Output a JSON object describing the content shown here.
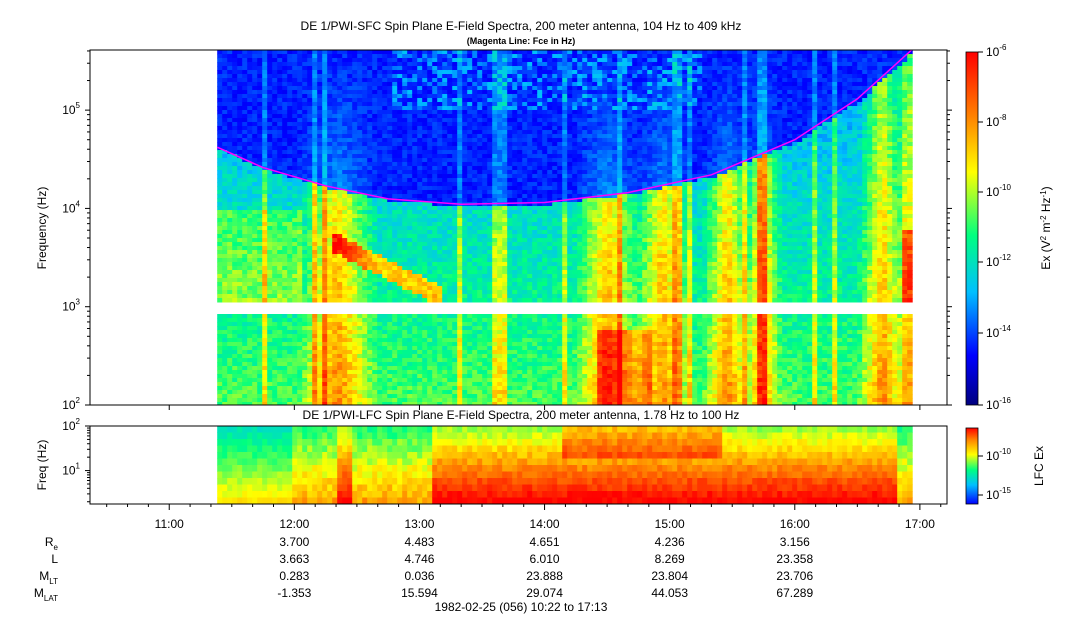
{
  "titles": {
    "main": "DE 1/PWI-SFC  Spin Plane E-Field Spectra, 200 meter antenna, 104 Hz to 409 kHz",
    "sub": "(Magenta Line: Fce in Hz)",
    "lower": "DE 1/PWI-LFC  Spin Plane E-Field Spectra, 200 meter antenna, 1.78 Hz to 100 Hz"
  },
  "footer": "1982-02-25 (056) 10:22 to 17:13",
  "ephemeris": {
    "rows": [
      {
        "label_main": "R",
        "label_sub": "e",
        "values": [
          "3.700",
          "4.483",
          "4.651",
          "4.236",
          "3.156"
        ]
      },
      {
        "label_main": "L",
        "label_sub": "",
        "values": [
          "3.663",
          "4.746",
          "6.010",
          "8.269",
          "23.358"
        ]
      },
      {
        "label_main": "M",
        "label_sub": "LT",
        "values": [
          "0.283",
          "0.036",
          "23.888",
          "23.804",
          "23.706"
        ]
      },
      {
        "label_main": "M",
        "label_sub": "LAT",
        "values": [
          "-1.353",
          "15.594",
          "29.074",
          "44.053",
          "67.289"
        ]
      }
    ]
  },
  "chart_data": [
    {
      "type": "heatmap",
      "title": "DE 1/PWI-SFC  Spin Plane E-Field Spectra, 200 meter antenna, 104 Hz to 409 kHz",
      "subtitle": "(Magenta Line: Fce in Hz)",
      "xlabel": "",
      "ylabel": "Frequency (Hz)",
      "y_scale": "log",
      "ylim": [
        100,
        409000
      ],
      "y_ticks": [
        100,
        1000,
        10000,
        100000
      ],
      "y_tick_labels": [
        [
          "10",
          "2"
        ],
        [
          "10",
          "3"
        ],
        [
          "10",
          "4"
        ],
        [
          "10",
          "5"
        ]
      ],
      "x_time_range": [
        "10:22",
        "17:13"
      ],
      "x_ticks": [
        "11:00",
        "12:00",
        "13:00",
        "14:00",
        "15:00",
        "16:00",
        "17:00"
      ],
      "data_start": "11:23",
      "data_end": "16:56",
      "colorbar": {
        "label": "Ex (V2 m-2 Hz-1)",
        "scale": "log",
        "range": [
          1e-16,
          1e-06
        ],
        "tick_labels": [
          [
            "10",
            "-6"
          ],
          [
            "10",
            "-8"
          ],
          [
            "10",
            "-10"
          ],
          [
            "10",
            "-12"
          ],
          [
            "10",
            "-14"
          ],
          [
            "10",
            "-16"
          ]
        ],
        "colormap": [
          "#00007f",
          "#0000ff",
          "#00bfff",
          "#00ff80",
          "#ffff00",
          "#ff8000",
          "#ff0000"
        ]
      },
      "overlay_line": {
        "name": "Fce",
        "color": "#ff00ff",
        "points": [
          {
            "time": "11:23",
            "freq": 42000
          },
          {
            "time": "11:45",
            "freq": 26000
          },
          {
            "time": "12:15",
            "freq": 17000
          },
          {
            "time": "12:45",
            "freq": 12500
          },
          {
            "time": "13:20",
            "freq": 11000
          },
          {
            "time": "14:00",
            "freq": 11500
          },
          {
            "time": "14:40",
            "freq": 14500
          },
          {
            "time": "15:20",
            "freq": 22000
          },
          {
            "time": "16:00",
            "freq": 50000
          },
          {
            "time": "16:30",
            "freq": 130000
          },
          {
            "time": "16:56",
            "freq": 409000
          }
        ]
      },
      "data_gap_band_hz": [
        920,
        1050
      ]
    },
    {
      "type": "heatmap",
      "title": "DE 1/PWI-LFC  Spin Plane E-Field Spectra, 200 meter antenna, 1.78 Hz to 100 Hz",
      "ylabel": "Freq (Hz)",
      "y_scale": "log",
      "ylim": [
        1.78,
        100
      ],
      "y_ticks": [
        10,
        100
      ],
      "y_tick_labels": [
        [
          "10",
          "1"
        ],
        [
          "10",
          "2"
        ]
      ],
      "x_ticks": [
        "11:00",
        "12:00",
        "13:00",
        "14:00",
        "15:00",
        "16:00",
        "17:00"
      ],
      "data_start": "11:23",
      "data_end": "16:56",
      "colorbar": {
        "label": "LFC Ex",
        "scale": "log",
        "tick_labels": [
          [
            "10",
            "-10"
          ],
          [
            "10",
            "-15"
          ]
        ]
      }
    }
  ]
}
